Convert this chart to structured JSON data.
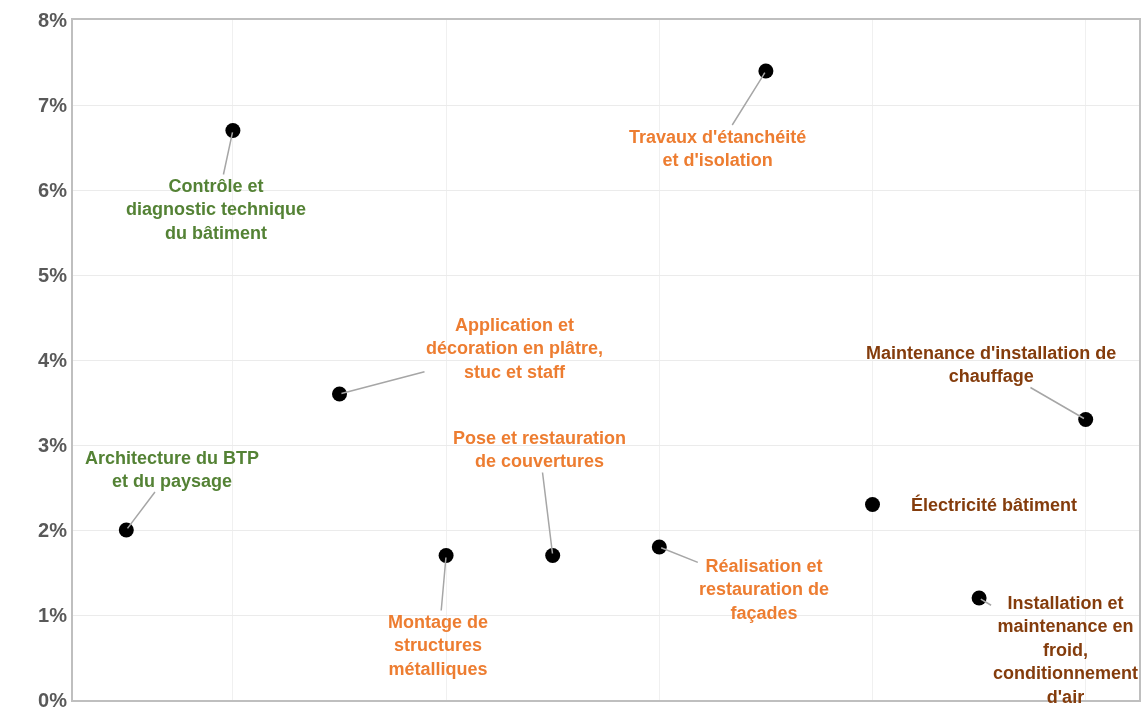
{
  "chart_data": {
    "type": "scatter",
    "categories": [
      null,
      null,
      null,
      null,
      null,
      null,
      null,
      null,
      null,
      null
    ],
    "values": [
      2.0,
      6.7,
      3.6,
      1.7,
      1.7,
      1.8,
      7.4,
      2.3,
      1.2,
      3.3
    ],
    "color": "#000000",
    "marker": "circle",
    "grid": true,
    "tick_labels": "y",
    "ylim": [
      0,
      8
    ],
    "yticks": [
      {
        "value": 0,
        "label": "0%"
      },
      {
        "value": 1,
        "label": "1%"
      },
      {
        "value": 2,
        "label": "2%"
      },
      {
        "value": 3,
        "label": "3%"
      },
      {
        "value": 4,
        "label": "4%"
      },
      {
        "value": 5,
        "label": "5%"
      },
      {
        "value": 6,
        "label": "6%"
      },
      {
        "value": 7,
        "label": "7%"
      },
      {
        "value": 8,
        "label": "8%"
      }
    ],
    "annotations": [
      "Architecture du BTP\net du paysage",
      "Contrôle et\ndiagnostic technique\ndu bâtiment",
      "Application et\ndécoration en plâtre,\nstuc et staff",
      "Montage de\nstructures\nmétalliques",
      "Pose et restauration\nde couvertures",
      "Réalisation et\nrestauration de\nfaçades",
      "Travaux d'étanchéité\net d'isolation",
      "Électricité bâtiment",
      "Installation et\nmaintenance en\nfroid,\nconditionnement\nd'air",
      "Maintenance d'installation de\nchauffage"
    ]
  }
}
